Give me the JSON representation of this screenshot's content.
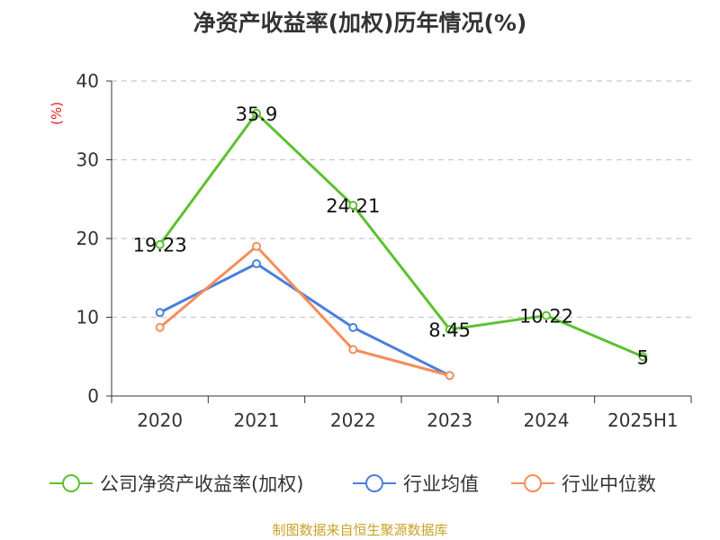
{
  "chart_data": {
    "type": "line",
    "title": "净资产收益率(加权)历年情况(%)",
    "ylabel": "(%)",
    "xlabel": "",
    "categories": [
      "2020",
      "2021",
      "2022",
      "2023",
      "2024",
      "2025H1"
    ],
    "ylim": [
      0,
      40
    ],
    "yticks": [
      0,
      10,
      20,
      30,
      40
    ],
    "grid": true,
    "legend_position": "bottom",
    "series": [
      {
        "name": "公司净资产收益率(加权)",
        "values": [
          19.23,
          35.9,
          24.21,
          8.45,
          10.22,
          5
        ],
        "color": "#5cc130",
        "show_labels": true
      },
      {
        "name": "行业均值",
        "values": [
          10.6,
          16.8,
          8.7,
          2.6,
          null,
          null
        ],
        "color": "#4c7fdb",
        "show_labels": false
      },
      {
        "name": "行业中位数",
        "values": [
          8.7,
          19.0,
          5.9,
          2.6,
          null,
          null
        ],
        "color": "#f58d59",
        "show_labels": false
      }
    ],
    "colors": {
      "axis": "#333333",
      "grid": "#c8c8c8",
      "ylabel": "#e02020",
      "source": "#c9a227"
    }
  },
  "source": "制图数据来自恒生聚源数据库"
}
